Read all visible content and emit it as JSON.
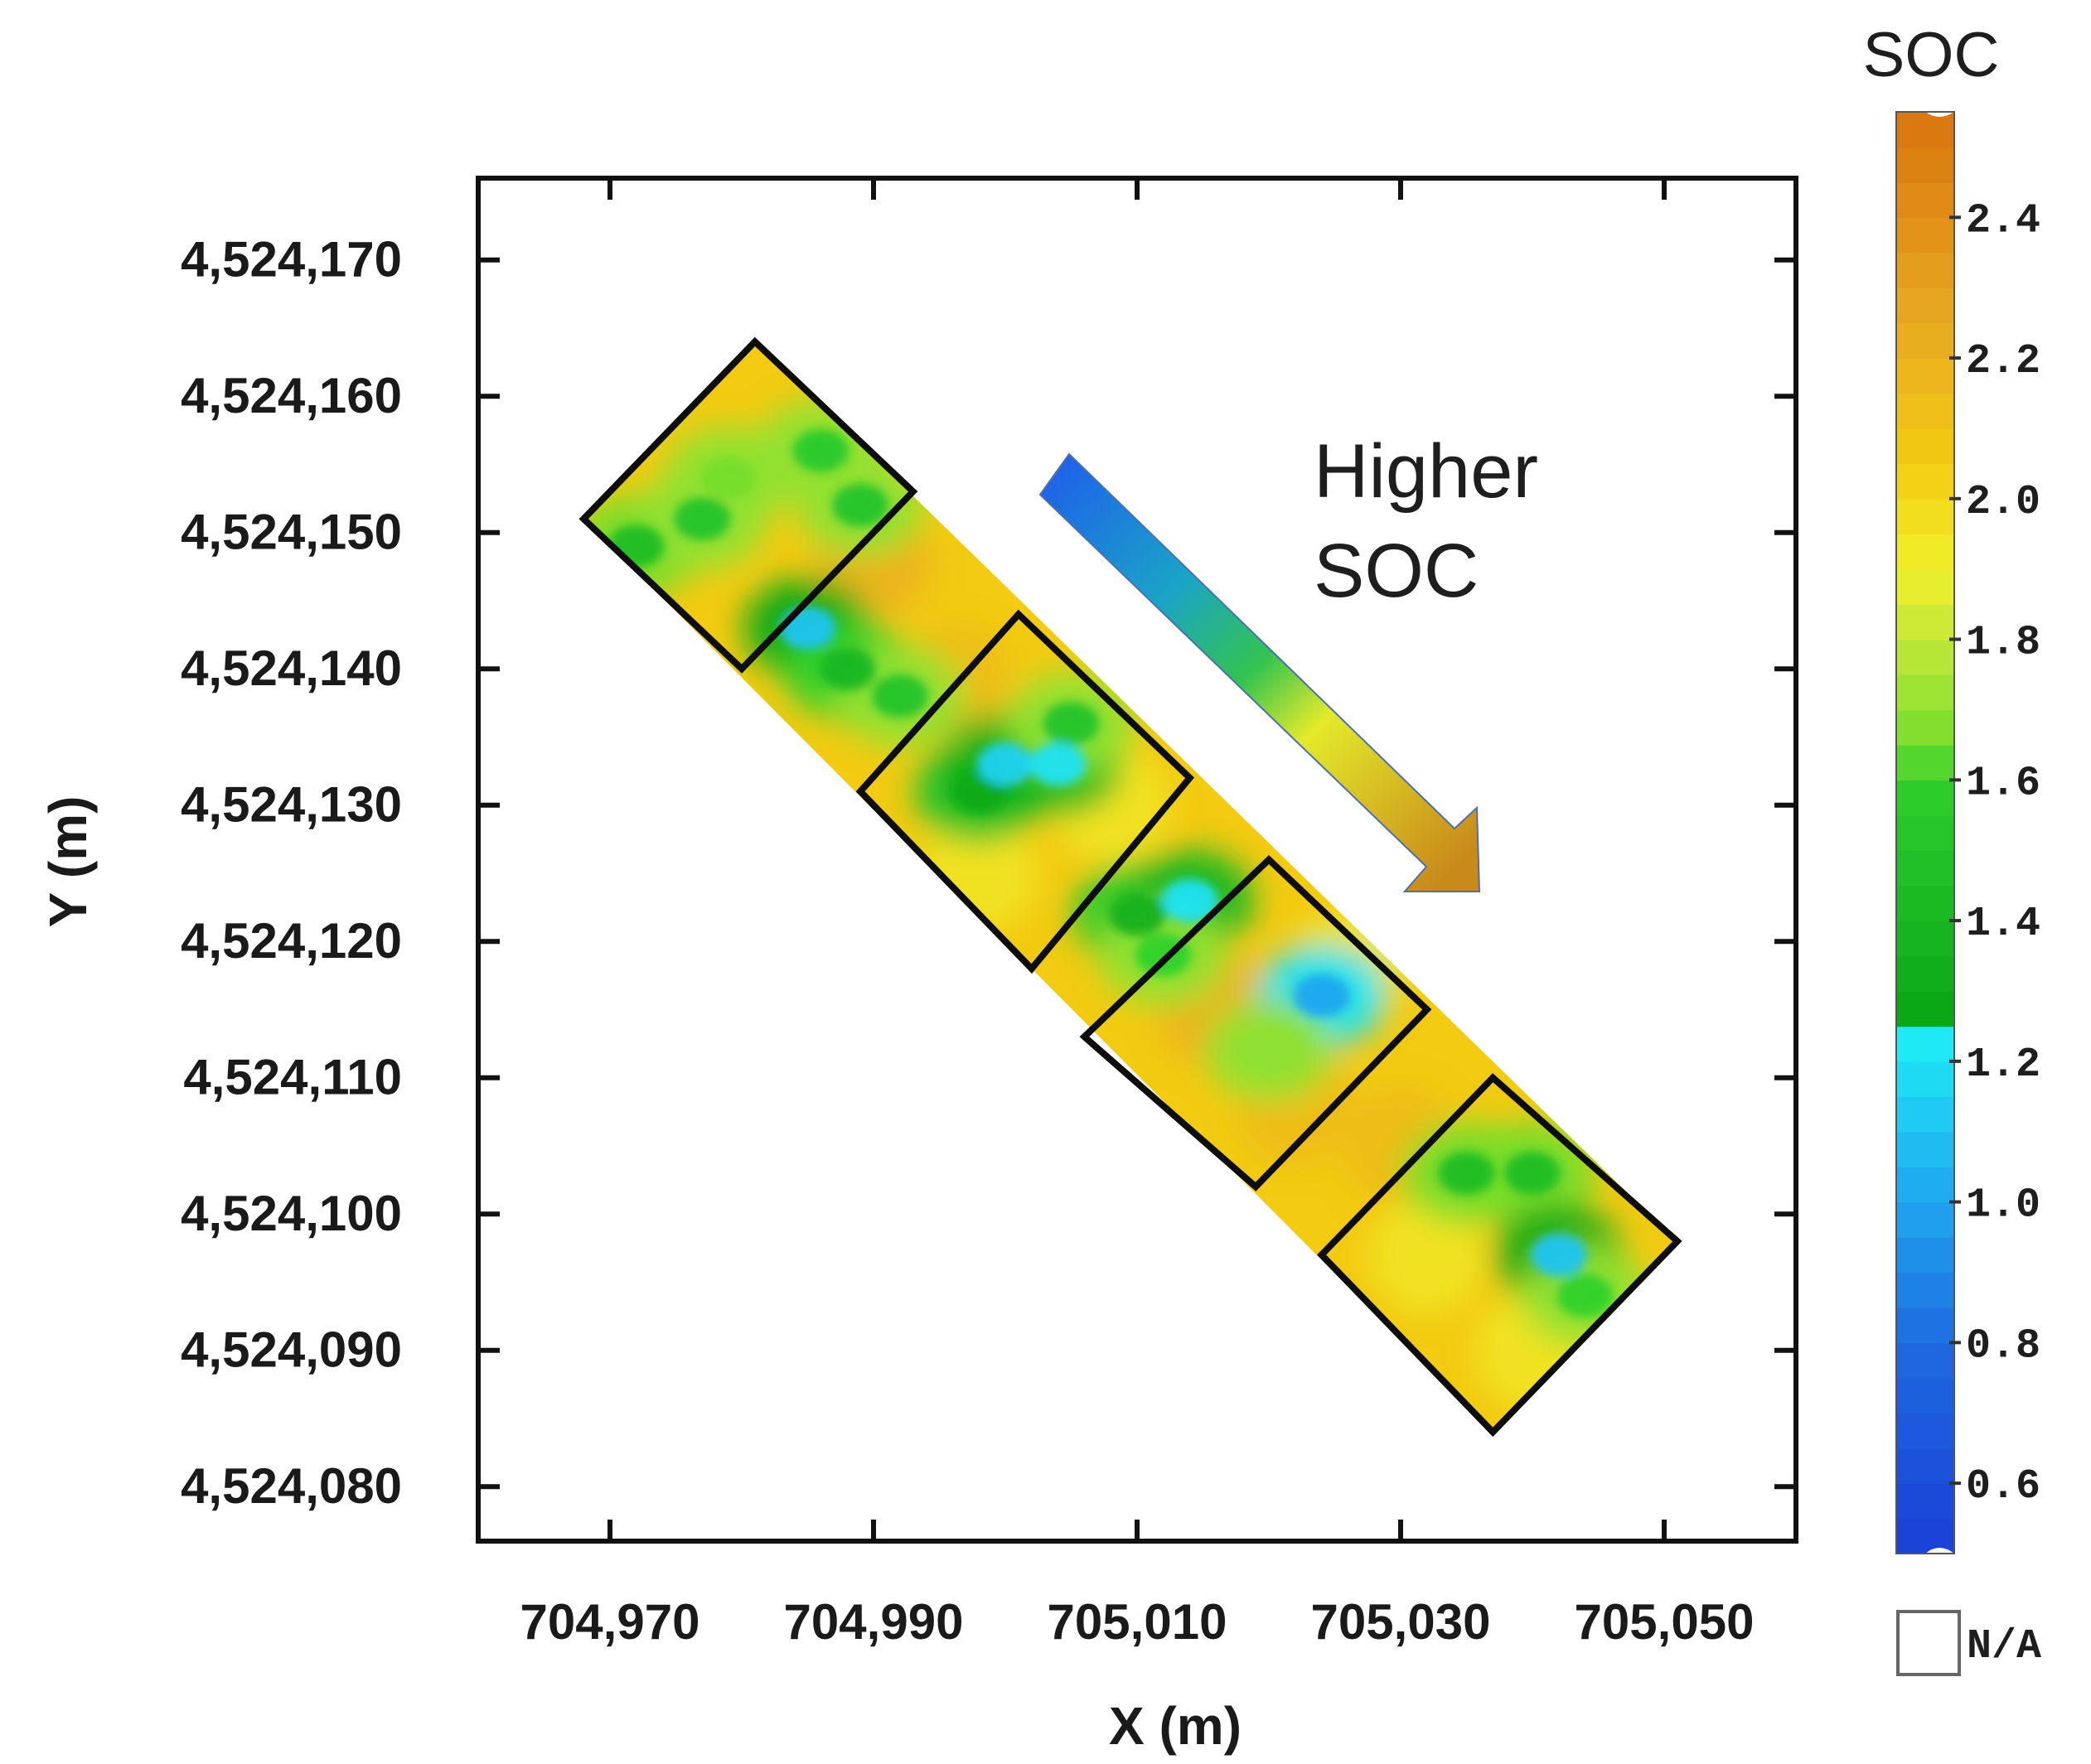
{
  "chart_data": {
    "type": "heatmap",
    "title": "",
    "xlabel": "X (m)",
    "ylabel": "Y (m)",
    "xlim": [
      704960,
      705060
    ],
    "ylim": [
      4524076,
      4524176
    ],
    "x_ticks": [
      704970,
      704990,
      705010,
      705030,
      705050
    ],
    "x_tick_labels": [
      "704,970",
      "704,990",
      "705,010",
      "705,030",
      "705,050"
    ],
    "y_ticks": [
      4524170,
      4524160,
      4524150,
      4524140,
      4524130,
      4524120,
      4524110,
      4524100,
      4524090,
      4524080
    ],
    "y_tick_labels": [
      "4,524,170",
      "4,524,160",
      "4,524,150",
      "4,524,140",
      "4,524,130",
      "4,524,120",
      "4,524,110",
      "4,524,100",
      "4,524,090",
      "4,524,080"
    ],
    "annotation": {
      "lines": [
        "Higher",
        "SOC"
      ]
    },
    "plots": [
      {
        "name": "plot-1",
        "corners": [
          [
            704981,
            4524164
          ],
          [
            704993,
            4524153
          ],
          [
            704980,
            4524140
          ],
          [
            704968,
            4524151
          ]
        ]
      },
      {
        "name": "plot-2",
        "corners": [
          [
            705001,
            4524144
          ],
          [
            705014,
            4524132
          ],
          [
            705002,
            4524118
          ],
          [
            704989,
            4524131
          ]
        ]
      },
      {
        "name": "plot-3",
        "corners": [
          [
            705020,
            4524126
          ],
          [
            705032,
            4524115
          ],
          [
            705019,
            4524102
          ],
          [
            705006,
            4524113
          ]
        ]
      },
      {
        "name": "plot-4",
        "corners": [
          [
            705037,
            4524110
          ],
          [
            705051,
            4524098
          ],
          [
            705037,
            4524084
          ],
          [
            705024,
            4524097
          ]
        ]
      }
    ],
    "strip": [
      [
        704981,
        4524164
      ],
      [
        705051,
        4524098
      ],
      [
        705037,
        4524084
      ],
      [
        704968,
        4524151
      ]
    ],
    "low_soc_patches": [
      {
        "x": 704972,
        "y": 4524149,
        "soc": 1.45
      },
      {
        "x": 704977,
        "y": 4524151,
        "soc": 1.5
      },
      {
        "x": 704986,
        "y": 4524156,
        "soc": 1.55
      },
      {
        "x": 704989,
        "y": 4524152,
        "soc": 1.5
      },
      {
        "x": 704979,
        "y": 4524154,
        "soc": 1.65
      },
      {
        "x": 704985,
        "y": 4524143,
        "soc": 1.1
      },
      {
        "x": 704988,
        "y": 4524140,
        "soc": 1.4
      },
      {
        "x": 704992,
        "y": 4524138,
        "soc": 1.5
      },
      {
        "x": 704998,
        "y": 4524131,
        "soc": 1.3
      },
      {
        "x": 705000,
        "y": 4524133,
        "soc": 1.15
      },
      {
        "x": 705004,
        "y": 4524133,
        "soc": 1.2
      },
      {
        "x": 705005,
        "y": 4524136,
        "soc": 1.5
      },
      {
        "x": 705010,
        "y": 4524122,
        "soc": 1.35
      },
      {
        "x": 705014,
        "y": 4524123,
        "soc": 1.2
      },
      {
        "x": 705012,
        "y": 4524119,
        "soc": 1.6
      },
      {
        "x": 705024,
        "y": 4524116,
        "soc": 1.0
      },
      {
        "x": 705020,
        "y": 4524112,
        "soc": 1.7
      },
      {
        "x": 705035,
        "y": 4524103,
        "soc": 1.45
      },
      {
        "x": 705040,
        "y": 4524103,
        "soc": 1.45
      },
      {
        "x": 705042,
        "y": 4524097,
        "soc": 1.1
      },
      {
        "x": 705044,
        "y": 4524094,
        "soc": 1.6
      }
    ],
    "background_soc": 2.05,
    "colorbar": {
      "title": "SOC",
      "min": 0.5,
      "max": 2.55,
      "ticks": [
        2.4,
        2.2,
        2.0,
        1.8,
        1.6,
        1.4,
        1.2,
        1.0,
        0.8,
        0.6
      ],
      "tick_labels": [
        "2.4",
        "2.2",
        "2.0",
        "1.8",
        "1.6",
        "1.4",
        "1.2",
        "1.0",
        "0.8",
        "0.6"
      ],
      "na_label": "N/A",
      "stops": [
        {
          "v": 0.5,
          "c": "#1a3fd6"
        },
        {
          "v": 0.8,
          "c": "#1e6be0"
        },
        {
          "v": 1.0,
          "c": "#1fa6ef"
        },
        {
          "v": 1.25,
          "c": "#1ff0f4"
        },
        {
          "v": 1.26,
          "c": "#0aa614"
        },
        {
          "v": 1.5,
          "c": "#22c32a"
        },
        {
          "v": 1.6,
          "c": "#2fd12b"
        },
        {
          "v": 1.65,
          "c": "#76dd2c"
        },
        {
          "v": 1.8,
          "c": "#c4e83a"
        },
        {
          "v": 1.9,
          "c": "#f1f02a"
        },
        {
          "v": 2.05,
          "c": "#f2cb12"
        },
        {
          "v": 2.25,
          "c": "#e8aa22"
        },
        {
          "v": 2.4,
          "c": "#e08f16"
        },
        {
          "v": 2.55,
          "c": "#d8750f"
        }
      ]
    }
  }
}
